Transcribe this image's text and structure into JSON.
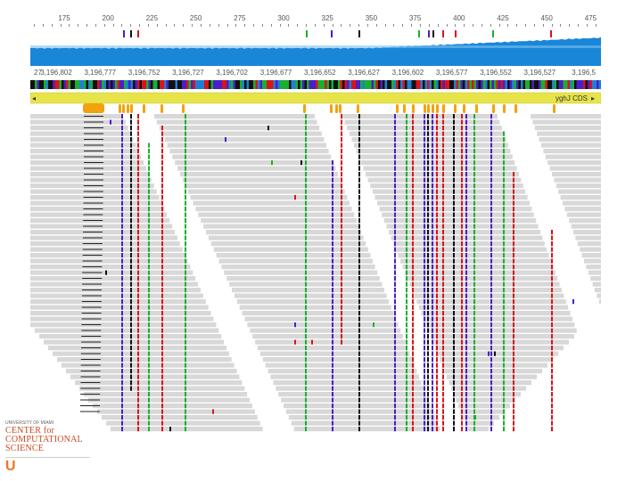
{
  "top_ruler": {
    "labels": [
      "175",
      "200",
      "225",
      "250",
      "275",
      "300",
      "325",
      "350",
      "375",
      "400",
      "425",
      "450",
      "475"
    ]
  },
  "coord_ruler": {
    "labels": [
      "27",
      "3,196,802",
      "3,196,777",
      "3,196,752",
      "3,196,727",
      "3,196,702",
      "3,196,677",
      "3,196,652",
      "3,196,627",
      "3,196,602",
      "3,196,577",
      "3,196,552",
      "3,196,527",
      "3,196,5"
    ]
  },
  "feature_track": {
    "label": "yghJ CDS"
  },
  "logo": {
    "line_small": "UNIVERSITY OF MIAMI",
    "line1": "CENTER for",
    "line2": "COMPUTATIONAL",
    "line3": "SCIENCE",
    "mark": "U"
  },
  "colors": {
    "read": "#d8d8d8",
    "coverage_fill": "#1a86d8",
    "coverage_light": "#7cc2f0",
    "base_A": "#19b02e",
    "base_C": "#4a1ec8",
    "base_G": "#111111",
    "base_T": "#d8141a",
    "feature_bar": "#e7e44a",
    "feature_mark": "#f2a20f"
  }
}
